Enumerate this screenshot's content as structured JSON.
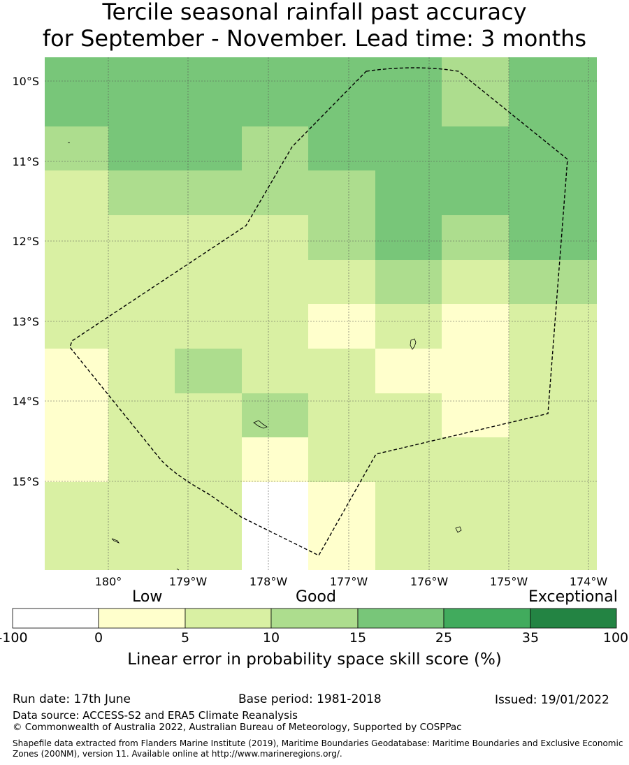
{
  "title": {
    "line1": "Tercile seasonal rainfall past accuracy",
    "line2": "for September - November. Lead time: 3 months"
  },
  "map": {
    "lat_labels": [
      "10°S",
      "11°S",
      "12°S",
      "13°S",
      "14°S",
      "15°S"
    ],
    "lon_labels": [
      "180°",
      "179°W",
      "178°W",
      "177°W",
      "176°W",
      "175°W",
      "174°W"
    ],
    "class_colors": [
      "#ffffff",
      "#ffffcc",
      "#d9f0a3",
      "#addd8e",
      "#78c679",
      "#41ab5d",
      "#238443"
    ],
    "skill_grid_rows_north_to_south": [
      [
        4,
        4,
        4,
        4,
        4,
        4,
        3,
        4
      ],
      [
        3,
        4,
        4,
        3,
        4,
        4,
        4,
        4
      ],
      [
        2,
        3,
        3,
        3,
        3,
        4,
        4,
        4
      ],
      [
        2,
        2,
        2,
        2,
        3,
        4,
        3,
        4
      ],
      [
        2,
        2,
        2,
        2,
        2,
        3,
        2,
        3
      ],
      [
        2,
        2,
        2,
        2,
        1,
        2,
        1,
        2
      ],
      [
        1,
        2,
        3,
        2,
        2,
        1,
        1,
        2
      ],
      [
        1,
        2,
        2,
        3,
        2,
        2,
        1,
        2
      ],
      [
        1,
        2,
        2,
        1,
        2,
        2,
        2,
        2
      ],
      [
        2,
        2,
        2,
        0,
        1,
        2,
        2,
        2
      ]
    ],
    "eez_boundary": "dashed"
  },
  "colorbar": {
    "categories": [
      "Low",
      "Good",
      "Exceptional"
    ],
    "ticks": [
      "-100",
      "0",
      "5",
      "10",
      "15",
      "25",
      "35",
      "100"
    ],
    "colors": [
      "#ffffff",
      "#ffffcc",
      "#d9f0a3",
      "#addd8e",
      "#78c679",
      "#41ab5d",
      "#238443"
    ],
    "label": "Linear error in probability space skill score (%)"
  },
  "footer": {
    "run_date": "Run date: 17th June",
    "base_period": "Base period: 1981-2018",
    "issued": "Issued: 19/01/2022",
    "data_source": "Data source: ACCESS-S2 and ERA5 Climate Reanalysis",
    "copyright": "© Commonwealth of Australia 2022, Australian Bureau of Meteorology, Supported by COSPPac",
    "shapefile_line1": "Shapefile data extracted from Flanders Marine Institute (2019), Maritime Boundaries Geodatabase: Maritime Boundaries and Exclusive Economic",
    "shapefile_line2": "Zones (200NM), version 11. Available online at http://www.marineregions.org/."
  }
}
